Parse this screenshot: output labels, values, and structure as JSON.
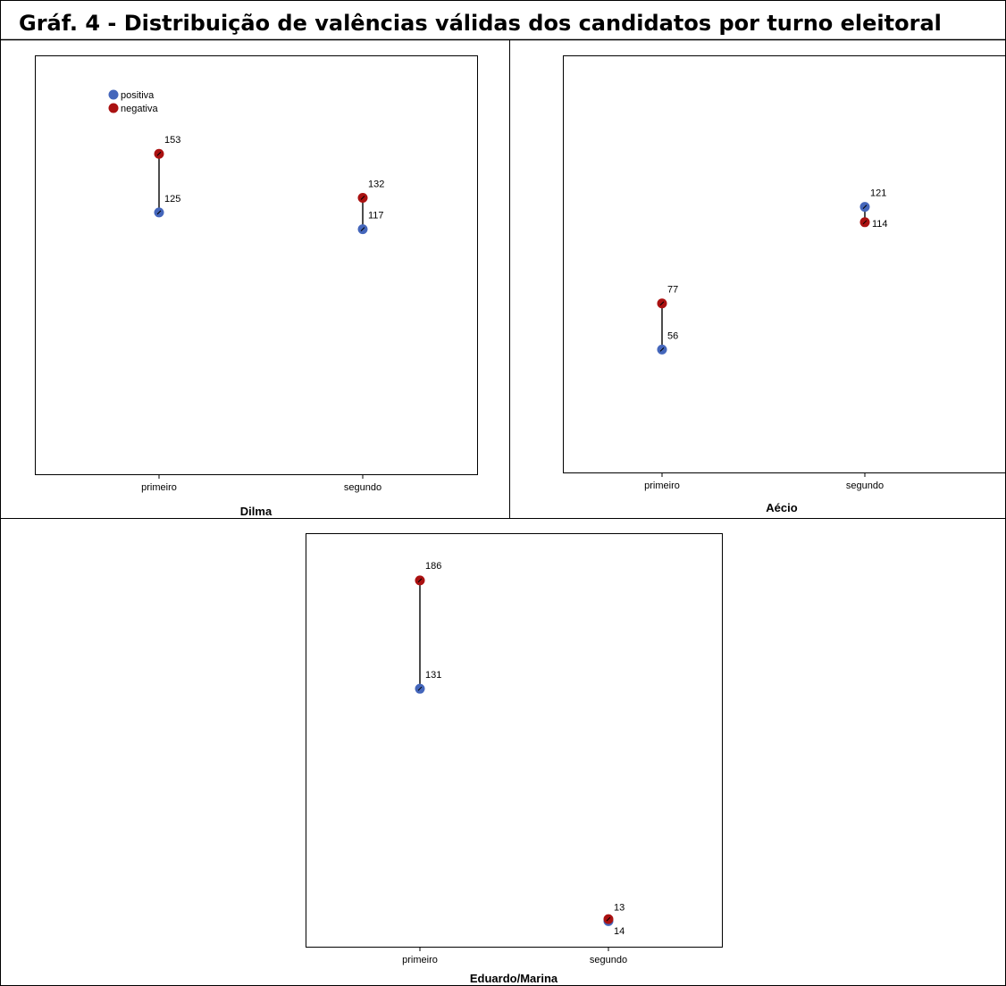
{
  "title": "Gráf. 4 - Distribuição de valências válidas dos candidatos por turno eleitoral",
  "colors": {
    "positiva": "#4466bb",
    "negativa": "#aa1111",
    "connector": "#000000"
  },
  "legend": {
    "items": [
      {
        "key": "positiva",
        "label": "positiva"
      },
      {
        "key": "negativa",
        "label": "negativa"
      }
    ]
  },
  "chart_data": [
    {
      "type": "scatter",
      "xlabel": "Dilma",
      "categories": [
        "primeiro",
        "segundo"
      ],
      "series": [
        {
          "name": "positiva",
          "values": [
            125,
            117
          ]
        },
        {
          "name": "negativa",
          "values": [
            153,
            132
          ]
        }
      ],
      "ylim": [
        0,
        200
      ],
      "grid": false,
      "legend": "top-left"
    },
    {
      "type": "scatter",
      "xlabel": "Aécio",
      "categories": [
        "primeiro",
        "segundo"
      ],
      "series": [
        {
          "name": "positiva",
          "values": [
            56,
            121
          ]
        },
        {
          "name": "negativa",
          "values": [
            77,
            114
          ]
        }
      ],
      "ylim": [
        0,
        190
      ],
      "grid": false
    },
    {
      "type": "scatter",
      "xlabel": "Eduardo/Marina",
      "categories": [
        "primeiro",
        "segundo"
      ],
      "series": [
        {
          "name": "positiva",
          "values": [
            131,
            13
          ]
        },
        {
          "name": "negativa",
          "values": [
            186,
            14
          ]
        }
      ],
      "ylim": [
        0,
        210
      ],
      "grid": false
    }
  ]
}
